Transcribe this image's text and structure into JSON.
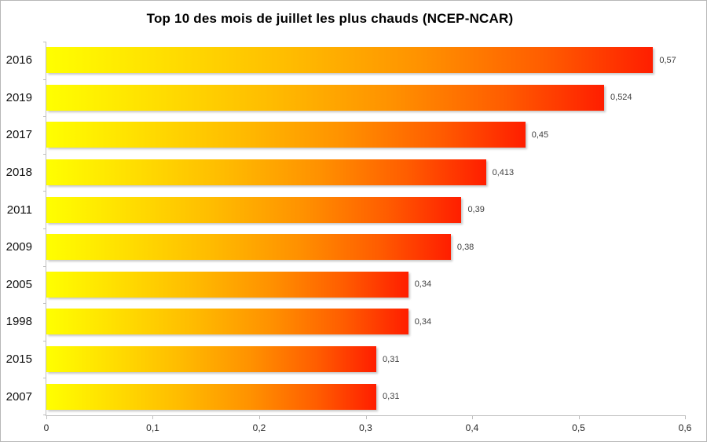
{
  "chart_data": {
    "type": "bar",
    "orientation": "horizontal",
    "title": "Top 10 des mois de juillet les plus chauds (NCEP-NCAR)",
    "categories": [
      "2016",
      "2019",
      "2017",
      "2018",
      "2011",
      "2009",
      "2005",
      "1998",
      "2015",
      "2007"
    ],
    "values": [
      0.57,
      0.524,
      0.45,
      0.413,
      0.39,
      0.38,
      0.34,
      0.34,
      0.31,
      0.31
    ],
    "value_labels": [
      "0,57",
      "0,524",
      "0,45",
      "0,413",
      "0,39",
      "0,38",
      "0,34",
      "0,34",
      "0,31",
      "0,31"
    ],
    "xlabel": "",
    "ylabel": "",
    "xlim": [
      0,
      0.6
    ],
    "x_ticks": [
      "0",
      "0,1",
      "0,2",
      "0,3",
      "0,4",
      "0,5",
      "0,6"
    ],
    "grid": false,
    "legend": "none",
    "colors": {
      "background": "#FFFFFF",
      "chart_border": "#B7B7B7",
      "axis": "#BFBFBF",
      "title_text": "#000000",
      "category_text": "#111111",
      "value_text": "#404040",
      "tick_text": "#262626",
      "bar_gradient": [
        {
          "color": "#FFFF00",
          "pos": "0%"
        },
        {
          "color": "#FFE100",
          "pos": "18%"
        },
        {
          "color": "#FFBC00",
          "pos": "40%"
        },
        {
          "color": "#FF9100",
          "pos": "62%"
        },
        {
          "color": "#FF5D00",
          "pos": "82%"
        },
        {
          "color": "#FF1E00",
          "pos": "100%"
        }
      ]
    }
  }
}
